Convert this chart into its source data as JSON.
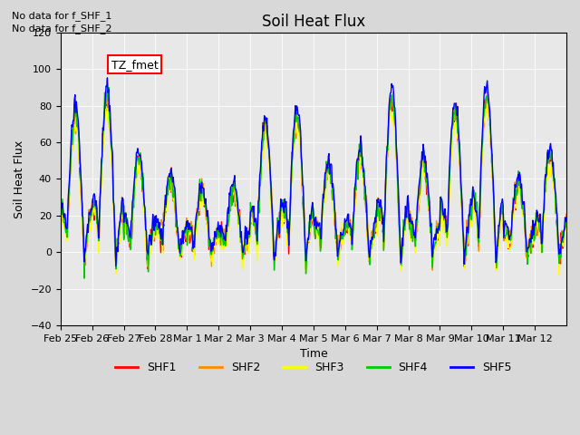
{
  "title": "Soil Heat Flux",
  "xlabel": "Time",
  "ylabel": "Soil Heat Flux",
  "ylim": [
    -40,
    120
  ],
  "annotations": [
    "No data for f_SHF_1",
    "No data for f_SHF_2"
  ],
  "legend_label": "TZ_fmet",
  "legend_entries": [
    "SHF1",
    "SHF2",
    "SHF3",
    "SHF4",
    "SHF5"
  ],
  "legend_colors": [
    "#ff0000",
    "#ff8c00",
    "#ffff00",
    "#00cc00",
    "#0000ff"
  ],
  "background_color": "#d8d8d8",
  "plot_bg_color": "#e8e8e8",
  "x_tick_labels": [
    "Feb 25",
    "Feb 26",
    "Feb 27",
    "Feb 28",
    "Mar 1",
    "Mar 2",
    "Mar 3",
    "Mar 4",
    "Mar 5",
    "Mar 6",
    "Mar 7",
    "Mar 8",
    "Mar 9",
    "Mar 10",
    "Mar 11",
    "Mar 12"
  ],
  "n_days": 16,
  "pts_per_day": 48
}
